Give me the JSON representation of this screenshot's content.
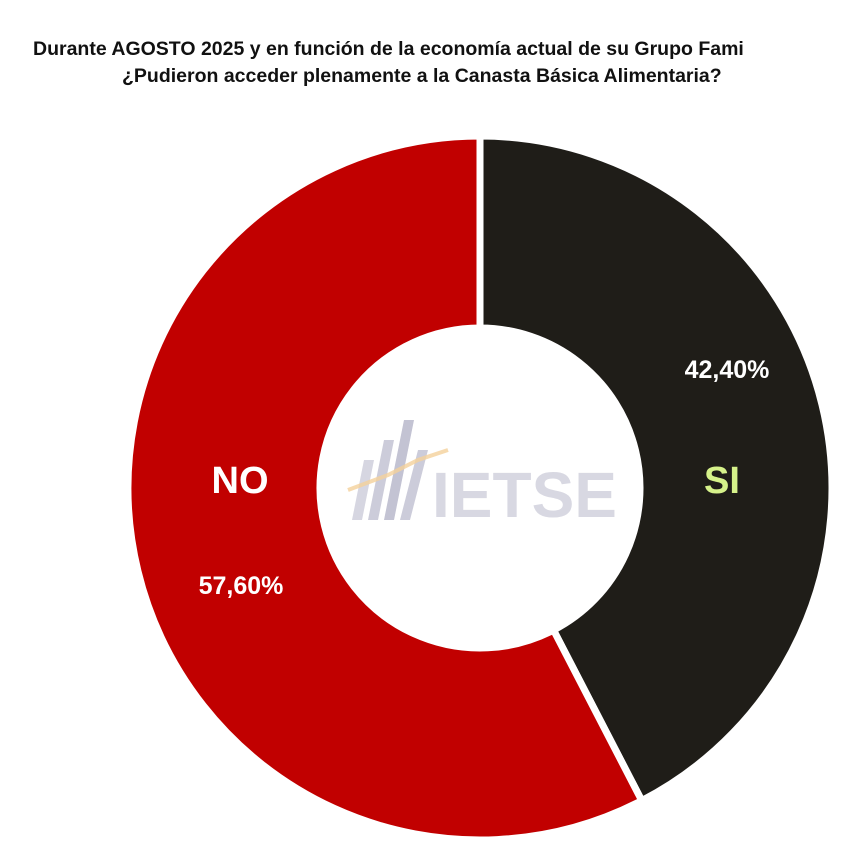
{
  "title_line1": "Durante AGOSTO 2025 y en función de la economía actual de su Grupo Fami",
  "title_line2": "¿Pudieron acceder plenamente a la Canasta Básica Alimentaria?",
  "watermark": {
    "text": "IETSE",
    "icon": "bar-chart-logo-icon"
  },
  "colors": {
    "si": "#1f1d18",
    "no": "#c10000",
    "si_label": "#d6f28a",
    "text_on_slice": "#ffffff"
  },
  "chart_data": {
    "type": "pie",
    "variant": "donut",
    "title": "Durante AGOSTO 2025 y en función de la economía actual de su Grupo Fami ¿Pudieron acceder plenamente a la Canasta Básica Alimentaria?",
    "slices": [
      {
        "label": "SI",
        "value": 42.4,
        "value_label": "42,40%",
        "color": "#1f1d18"
      },
      {
        "label": "NO",
        "value": 57.6,
        "value_label": "57,60%",
        "color": "#c10000"
      }
    ],
    "start": "top",
    "direction": "clockwise",
    "legend": "none"
  }
}
